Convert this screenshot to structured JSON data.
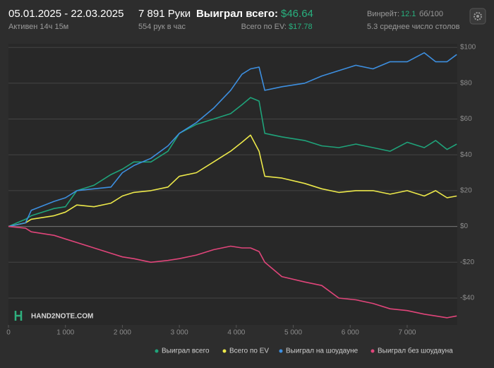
{
  "header": {
    "date_range": "05.01.2025 - 22.03.2025",
    "active": "Активен 14ч 15м",
    "hands": "7 891 Руки",
    "hands_per_hour": "554 рук в час",
    "won_total_label": "Выиграл всего:",
    "won_total_value": "$46.64",
    "ev_label": "Всего по EV:",
    "ev_value": "$17.78",
    "winrate_label": "Винрейт:",
    "winrate_value": "12.1",
    "winrate_unit": "бб/100",
    "tables": "5.3 среднее число столов"
  },
  "chart_data": {
    "type": "line",
    "watermark": "HAND2NOTE.COM",
    "x": [
      0,
      300,
      400,
      800,
      1000,
      1200,
      1500,
      1800,
      2000,
      2200,
      2500,
      2800,
      3000,
      3300,
      3600,
      3900,
      4100,
      4250,
      4400,
      4500,
      4800,
      5200,
      5500,
      5800,
      6100,
      6400,
      6700,
      7000,
      7300,
      7500,
      7700,
      7870
    ],
    "series": [
      {
        "name": "Выиграл всего",
        "color": "#1fa37a",
        "values": [
          0,
          4,
          6,
          10,
          11,
          20,
          23,
          29,
          32,
          36,
          36,
          42,
          52,
          57,
          60,
          63,
          68,
          72,
          70,
          52,
          50,
          48,
          45,
          44,
          46,
          44,
          42,
          47,
          44,
          48,
          43,
          46
        ]
      },
      {
        "name": "Всего по EV",
        "color": "#ece84a",
        "values": [
          0,
          2,
          4,
          6,
          8,
          12,
          11,
          13,
          17,
          19,
          20,
          22,
          28,
          30,
          36,
          42,
          47,
          51,
          42,
          28,
          27,
          24,
          21,
          19,
          20,
          20,
          18,
          20,
          17,
          20,
          16,
          17
        ]
      },
      {
        "name": "Выиграл на шоудауне",
        "color": "#3d8fe0",
        "values": [
          0,
          2,
          9,
          14,
          16,
          20,
          21,
          22,
          30,
          34,
          38,
          45,
          52,
          58,
          66,
          76,
          85,
          88,
          89,
          76,
          78,
          80,
          84,
          87,
          90,
          88,
          92,
          92,
          97,
          92,
          92,
          96
        ]
      },
      {
        "name": "Выиграл без шоудауна",
        "color": "#e0457a",
        "values": [
          0,
          -1,
          -3,
          -5,
          -7,
          -9,
          -12,
          -15,
          -17,
          -18,
          -20,
          -19,
          -18,
          -16,
          -13,
          -11,
          -12,
          -12,
          -14,
          -20,
          -28,
          -31,
          -33,
          -40,
          -41,
          -43,
          -46,
          -47,
          -49,
          -50,
          -51,
          -50
        ]
      }
    ],
    "xlim": [
      0,
      7880
    ],
    "ylim": [
      -55,
      102
    ],
    "xticks": [
      0,
      {
        "value": 1000,
        "label": "1 000"
      },
      {
        "value": 2000,
        "label": "2 000"
      },
      {
        "value": 3000,
        "label": "3 000"
      },
      {
        "value": 4000,
        "label": "4 000"
      },
      {
        "value": 5000,
        "label": "5 000"
      },
      {
        "value": 6000,
        "label": "6 000"
      },
      {
        "value": 7000,
        "label": "7 000"
      }
    ],
    "yticks": [
      {
        "value": -40,
        "label": "-$40"
      },
      {
        "value": -20,
        "label": "-$20"
      },
      {
        "value": 0,
        "label": "$0"
      },
      {
        "value": 20,
        "label": "$20"
      },
      {
        "value": 40,
        "label": "$40"
      },
      {
        "value": 60,
        "label": "$60"
      },
      {
        "value": 80,
        "label": "$80"
      },
      {
        "value": 100,
        "label": "$100"
      }
    ],
    "grid": true
  }
}
